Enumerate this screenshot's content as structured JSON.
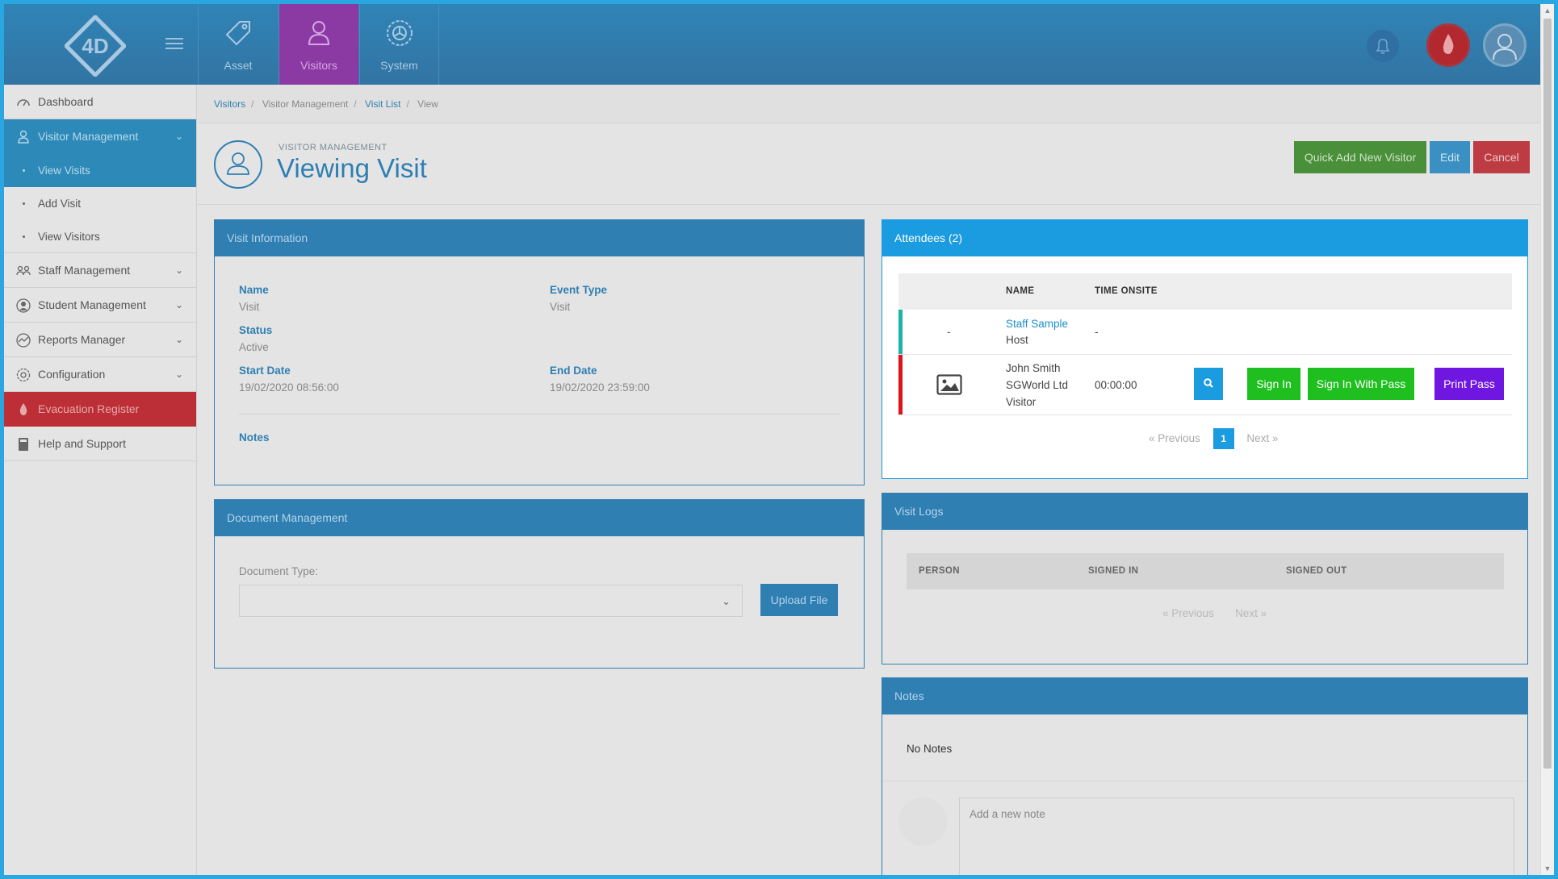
{
  "top_nav": {
    "tabs": [
      {
        "label": "Asset",
        "icon": "tag-icon"
      },
      {
        "label": "Visitors",
        "icon": "user-icon"
      },
      {
        "label": "System",
        "icon": "gear-icon"
      }
    ],
    "logo_text": "4D"
  },
  "sidebar": {
    "items": [
      {
        "label": "Dashboard",
        "icon": "dashboard-icon"
      },
      {
        "label": "Visitor Management",
        "icon": "user-icon"
      },
      {
        "label": "Staff Management",
        "icon": "group-icon"
      },
      {
        "label": "Student Management",
        "icon": "student-icon"
      },
      {
        "label": "Reports Manager",
        "icon": "chart-icon"
      },
      {
        "label": "Configuration",
        "icon": "gear-icon"
      },
      {
        "label": "Evacuation Register",
        "icon": "flame-icon"
      },
      {
        "label": "Help and Support",
        "icon": "book-icon"
      }
    ],
    "visitor_subitems": [
      "View Visits",
      "Add Visit",
      "View Visitors"
    ]
  },
  "breadcrumb": [
    "Visitors",
    "Visitor Management",
    "Visit List",
    "View"
  ],
  "page": {
    "supertitle": "VISITOR MANAGEMENT",
    "title": "Viewing Visit",
    "buttons": {
      "quick_add": "Quick Add New Visitor",
      "edit": "Edit",
      "cancel": "Cancel"
    }
  },
  "visit_info": {
    "heading": "Visit Information",
    "name_label": "Name",
    "name_value": "Visit",
    "event_type_label": "Event Type",
    "event_type_value": "Visit",
    "status_label": "Status",
    "status_value": "Active",
    "start_label": "Start Date",
    "start_value": "19/02/2020 08:56:00",
    "end_label": "End Date",
    "end_value": "19/02/2020 23:59:00",
    "notes_label": "Notes"
  },
  "documents": {
    "heading": "Document Management",
    "type_label": "Document Type:",
    "selected": "",
    "upload_label": "Upload File"
  },
  "attendees": {
    "heading": "Attendees (2)",
    "columns": [
      "NAME",
      "TIME ONSITE"
    ],
    "rows": [
      {
        "photo": "-",
        "name": "Staff Sample",
        "role": "Host",
        "time": "-",
        "color": "#1fb3a6"
      },
      {
        "name": "John Smith",
        "company": "SGWorld Ltd",
        "role": "Visitor",
        "time": "00:00:00",
        "color": "#e0121c",
        "actions": {
          "sign_in": "Sign In",
          "sign_in_pass": "Sign In With Pass",
          "print": "Print Pass"
        }
      }
    ],
    "pager": {
      "prev": "Previous",
      "page": "1",
      "next": "Next"
    }
  },
  "visit_logs": {
    "heading": "Visit Logs",
    "columns": [
      "PERSON",
      "SIGNED IN",
      "SIGNED OUT"
    ],
    "pager": {
      "prev": "Previous",
      "next": "Next"
    }
  },
  "notes": {
    "heading": "Notes",
    "empty_text": "No Notes",
    "placeholder": "Add a new note"
  },
  "colors": {
    "primary": "#2f7fb3",
    "attendees": "#1b9be0",
    "green": "#1fbf1f",
    "purple": "#6f16e0",
    "danger": "#bd3b42"
  }
}
